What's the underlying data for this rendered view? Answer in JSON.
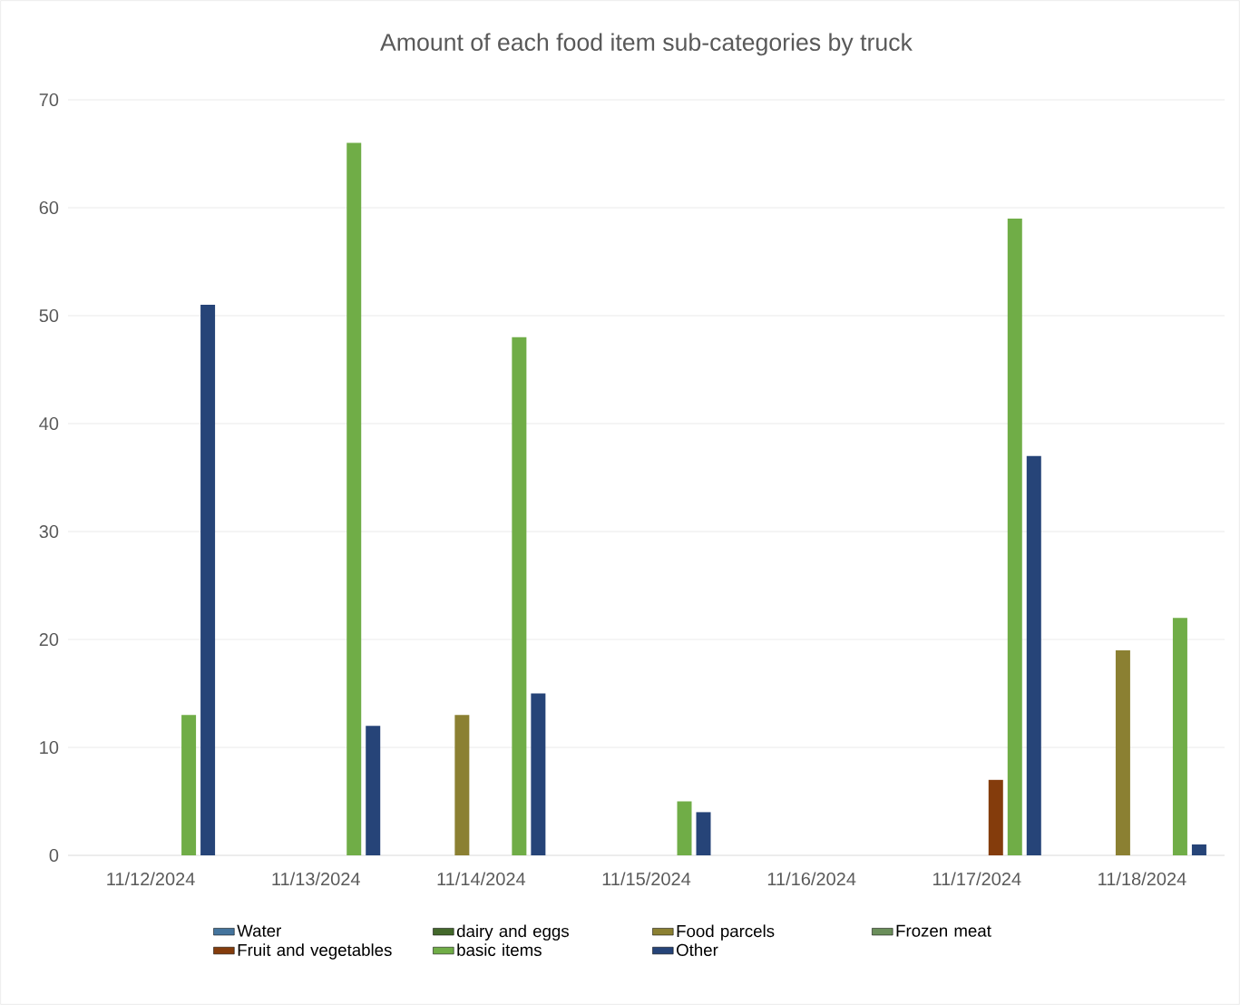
{
  "chart_data": {
    "type": "bar",
    "title": "Amount of each food item sub-categories by truck",
    "categories": [
      "11/12/2024",
      "11/13/2024",
      "11/14/2024",
      "11/15/2024",
      "11/16/2024",
      "11/17/2024",
      "11/18/2024"
    ],
    "series": [
      {
        "name": "Water",
        "color": "#44749d",
        "values": [
          0,
          0,
          0,
          0,
          0,
          0,
          0
        ]
      },
      {
        "name": "dairy and eggs",
        "color": "#43682b",
        "values": [
          0,
          0,
          0,
          0,
          0,
          0,
          0
        ]
      },
      {
        "name": "Food parcels",
        "color": "#8b8032",
        "values": [
          0,
          0,
          13,
          0,
          0,
          0,
          19
        ]
      },
      {
        "name": "Frozen meat",
        "color": "#6a8e5a",
        "values": [
          0,
          0,
          0,
          0,
          0,
          0,
          0
        ]
      },
      {
        "name": "Fruit and vegetables",
        "color": "#843c0c",
        "values": [
          0,
          0,
          0,
          0,
          0,
          7,
          0
        ]
      },
      {
        "name": "basic items",
        "color": "#70ad47",
        "values": [
          13,
          66,
          48,
          5,
          0,
          59,
          22
        ]
      },
      {
        "name": "Other",
        "color": "#264478",
        "values": [
          51,
          12,
          15,
          4,
          0,
          37,
          1
        ]
      }
    ],
    "ylim": [
      0,
      70
    ],
    "yticks": [
      0,
      10,
      20,
      30,
      40,
      50,
      60,
      70
    ],
    "grid": "y",
    "legend": "bottom"
  }
}
